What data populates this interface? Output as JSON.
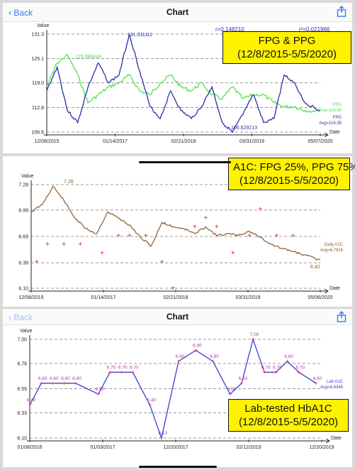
{
  "navbar": {
    "back_label": "Back",
    "title": "Chart"
  },
  "colors": {
    "fpg": "#2b2fa8",
    "ppg": "#4fe24f",
    "a1c_line": "#8a5a2b",
    "a1c_points": "#d22020",
    "lab_line": "#3a3fcf",
    "lab_points": "#ff2a2a",
    "callout_bg": "#fff200"
  },
  "panel1": {
    "stats": {
      "r": "r=0.148210",
      "r2": "r²=0.021966"
    },
    "callout": {
      "line1": "FPG & PPG",
      "line2": "(12/8/2015-5/5/2020)"
    },
    "legend": {
      "ppg_name": "PPG",
      "ppg_avg": "Avg=116.89",
      "fpg_name": "FPG",
      "fpg_avg": "Avg=116.35"
    },
    "annotations": {
      "ppg_max": "125.996444",
      "fpg_max": "131.311111",
      "fpg_min": "106.629213"
    }
  },
  "panel2": {
    "callout": {
      "line1": "A1C: FPG 25%, PPG 75%",
      "line2": "(12/8/2015-5/5/2020)"
    },
    "legend": {
      "name": "Daily A1C",
      "avg": "Avg=6.7919"
    },
    "annotations": {
      "max": "7.26",
      "last": "6.42"
    }
  },
  "panel3": {
    "callout": {
      "line1": "Lab-tested HbA1C",
      "line2": "(12/8/2015-5/5/2020)"
    },
    "legend": {
      "name": "Lab A1C",
      "avg": "Avg=6.6348"
    }
  },
  "chart_data": [
    {
      "type": "line",
      "xlabel": "Date",
      "ylabel": "Value",
      "ylim": [
        106.6,
        131.3
      ],
      "yticks": [
        "131.3",
        "125.1",
        "119.0",
        "112.8",
        "106.6"
      ],
      "xticks": [
        "12/08/2015",
        "01/14/2017",
        "02/21/2018",
        "03/31/2019",
        "05/07/2020"
      ],
      "series": [
        {
          "name": "FPG",
          "x": [
            "2015-12",
            "2016-02",
            "2016-04",
            "2016-06",
            "2016-08",
            "2016-10",
            "2016-12",
            "2017-02",
            "2017-04",
            "2017-06",
            "2017-08",
            "2017-10",
            "2017-12",
            "2018-02",
            "2018-04",
            "2018-06",
            "2018-08",
            "2018-10",
            "2018-12",
            "2019-02",
            "2019-04",
            "2019-06",
            "2019-08",
            "2019-10",
            "2019-12",
            "2020-02",
            "2020-05"
          ],
          "values": [
            117,
            123,
            112,
            109,
            118,
            124,
            119,
            121,
            131.3,
            122,
            113,
            110,
            117,
            112,
            110,
            113,
            118,
            109,
            106.6,
            111,
            116,
            109,
            110,
            121,
            119,
            114,
            112
          ]
        },
        {
          "name": "PPG",
          "x": [
            "2015-12",
            "2016-02",
            "2016-04",
            "2016-06",
            "2016-08",
            "2016-10",
            "2016-12",
            "2017-02",
            "2017-04",
            "2017-06",
            "2017-08",
            "2017-10",
            "2017-12",
            "2018-02",
            "2018-04",
            "2018-06",
            "2018-08",
            "2018-10",
            "2018-12",
            "2019-02",
            "2019-04",
            "2019-06",
            "2019-08",
            "2019-10",
            "2019-12",
            "2020-02",
            "2020-05"
          ],
          "values": [
            118,
            124,
            126,
            121,
            114,
            116,
            118,
            119,
            121,
            117,
            116,
            119,
            121,
            118,
            117,
            119,
            116,
            115,
            118,
            115,
            116,
            116,
            114,
            113,
            113,
            112,
            112
          ]
        }
      ]
    },
    {
      "type": "line",
      "xlabel": "Date",
      "ylabel": "Value",
      "ylim": [
        6.1,
        7.28
      ],
      "yticks": [
        "7.28",
        "6.99",
        "6.69",
        "6.39",
        "6.10"
      ],
      "xticks": [
        "12/08/2015",
        "01/14/2017",
        "02/21/2018",
        "03/31/2019",
        "05/06/2020"
      ],
      "series": [
        {
          "name": "Daily A1C",
          "x": [
            "2015-12",
            "2016-02",
            "2016-04",
            "2016-06",
            "2016-08",
            "2016-10",
            "2016-12",
            "2017-02",
            "2017-04",
            "2017-06",
            "2017-08",
            "2017-10",
            "2017-12",
            "2018-02",
            "2018-04",
            "2018-06",
            "2018-08",
            "2018-10",
            "2018-12",
            "2019-02",
            "2019-04",
            "2019-06",
            "2019-08",
            "2019-10",
            "2019-12",
            "2020-02",
            "2020-05"
          ],
          "values": [
            6.97,
            7.05,
            7.26,
            7.1,
            6.9,
            6.78,
            6.72,
            6.97,
            6.9,
            6.82,
            6.68,
            6.58,
            6.85,
            6.8,
            6.78,
            6.72,
            6.8,
            6.7,
            6.72,
            6.7,
            6.75,
            6.68,
            6.6,
            6.55,
            6.52,
            6.48,
            6.42
          ]
        },
        {
          "name": "Lab A1C points",
          "x": [
            "2016-01",
            "2016-03",
            "2016-06",
            "2016-09",
            "2017-01",
            "2017-04",
            "2017-06",
            "2017-09",
            "2017-12",
            "2018-02",
            "2018-06",
            "2018-08",
            "2018-10",
            "2019-01",
            "2019-04",
            "2019-06",
            "2019-09",
            "2019-12"
          ],
          "values": [
            6.4,
            6.6,
            6.6,
            6.6,
            6.5,
            6.7,
            6.7,
            6.7,
            6.4,
            6.1,
            6.8,
            6.9,
            6.8,
            6.5,
            6.7,
            7.0,
            6.7,
            6.7
          ]
        }
      ]
    },
    {
      "type": "line",
      "xlabel": "Date",
      "ylabel": "Value",
      "ylim": [
        6.1,
        7.0
      ],
      "yticks": [
        "7.00",
        "6.78",
        "6.55",
        "6.33",
        "6.10"
      ],
      "xticks": [
        "01/08/2016",
        "01/03/2017",
        "12/20/2017",
        "02/12/2019",
        "12/20/2019"
      ],
      "series": [
        {
          "name": "Lab A1C",
          "x": [
            "2016-01",
            "2016-03",
            "2016-05",
            "2016-07",
            "2016-09",
            "2017-01",
            "2017-03",
            "2017-05",
            "2017-07",
            "2017-10",
            "2017-12",
            "2018-03",
            "2018-06",
            "2018-09",
            "2018-12",
            "2019-02",
            "2019-04",
            "2019-06",
            "2019-08",
            "2019-10",
            "2019-12",
            "2020-03"
          ],
          "values": [
            6.4,
            6.6,
            6.6,
            6.6,
            6.6,
            6.5,
            6.7,
            6.7,
            6.7,
            6.4,
            6.1,
            6.8,
            6.9,
            6.8,
            6.5,
            6.6,
            7.0,
            6.7,
            6.7,
            6.8,
            6.7,
            6.6
          ]
        },
        {
          "name": "Lab A1C labels",
          "values": [
            "6.40",
            "6.60",
            "6.60",
            "6.60",
            "6.60",
            "6.50",
            "6.70",
            "6.70",
            "6.70",
            "6.40",
            "6.10",
            "6.80",
            "6.90",
            "6.80",
            "6.50",
            "6.60",
            "7.00",
            "6.70",
            "6.70",
            "6.80",
            "6.70",
            "6.60"
          ]
        }
      ]
    }
  ]
}
